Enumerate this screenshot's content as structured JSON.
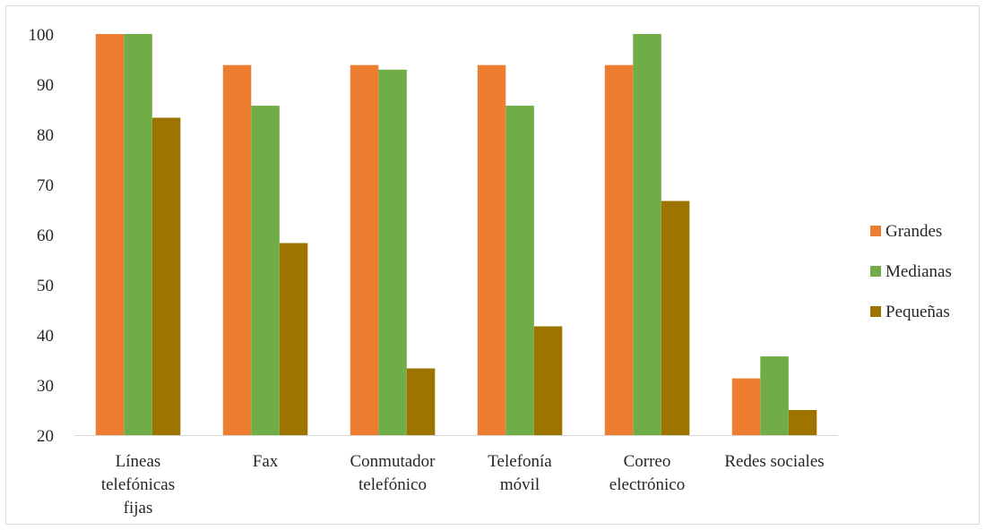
{
  "chart_data": {
    "type": "bar",
    "categories": [
      [
        "Líneas",
        "telefónicas",
        "fijas"
      ],
      [
        "Fax"
      ],
      [
        "Conmutador",
        "telefónico"
      ],
      [
        "Telefonía",
        "móvil"
      ],
      [
        "Correo",
        "electrónico"
      ],
      [
        "Redes sociales"
      ]
    ],
    "series": [
      {
        "name": "Grandes",
        "color": "#ED7D31",
        "values": [
          100,
          93.8,
          93.8,
          93.8,
          93.8,
          31.3
        ]
      },
      {
        "name": "Medianas",
        "color": "#70AD47",
        "values": [
          100,
          85.7,
          92.9,
          85.7,
          100,
          35.7
        ]
      },
      {
        "name": "Pequeñas",
        "color": "#9E7400",
        "values": [
          83.3,
          58.3,
          33.3,
          41.7,
          66.7,
          25.0
        ]
      }
    ],
    "ylim": [
      20,
      100
    ],
    "yticks": [
      20,
      30,
      40,
      50,
      60,
      70,
      80,
      90,
      100
    ],
    "grid": false,
    "legend": "right",
    "title": "",
    "xlabel": "",
    "ylabel": ""
  }
}
